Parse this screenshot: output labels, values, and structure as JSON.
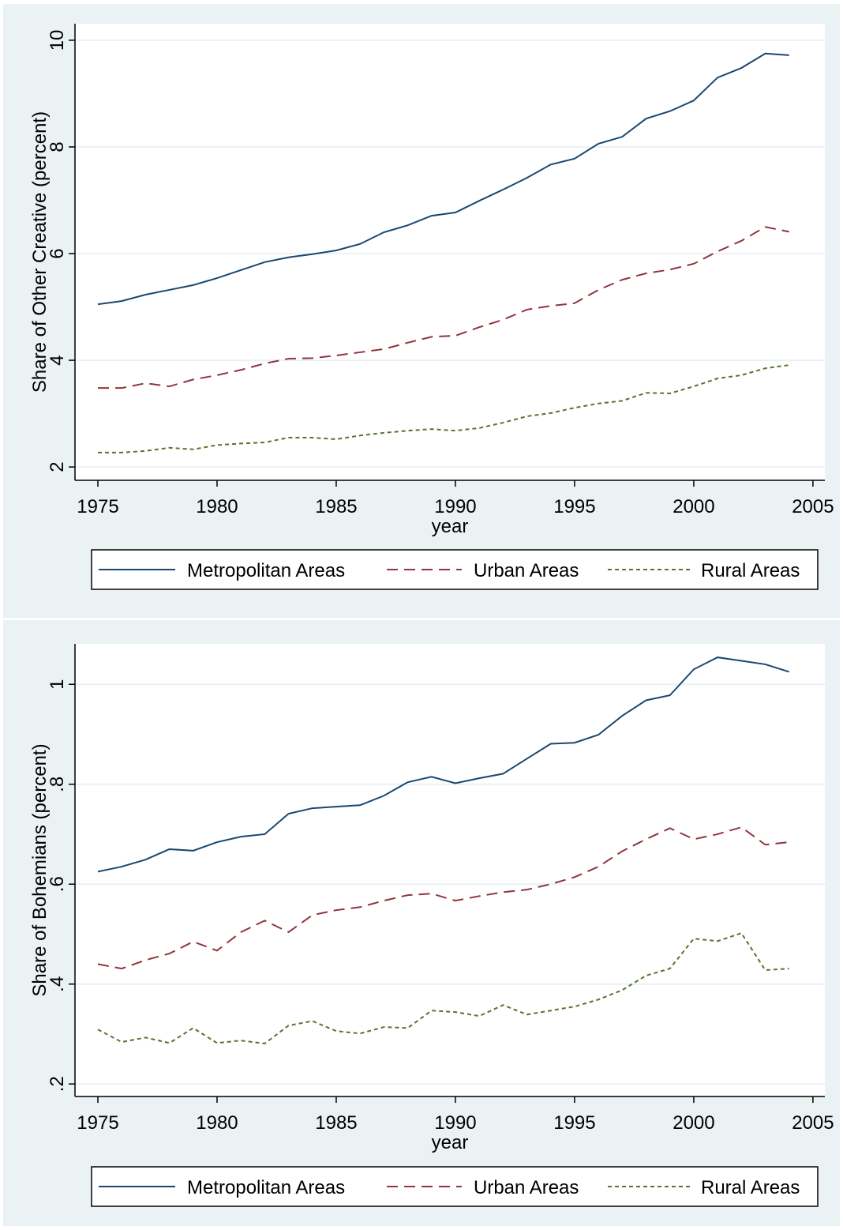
{
  "chart_data": [
    {
      "type": "line",
      "y_label": "Share of Other Creative (percent)",
      "x_label": "year",
      "x": [
        1975,
        1976,
        1977,
        1978,
        1979,
        1980,
        1981,
        1982,
        1983,
        1984,
        1985,
        1986,
        1987,
        1988,
        1989,
        1990,
        1991,
        1992,
        1993,
        1994,
        1995,
        1996,
        1997,
        1998,
        1999,
        2000,
        2001,
        2002,
        2003,
        2004
      ],
      "xlim": [
        1974.04,
        2005.5
      ],
      "xticks": [
        1975,
        1980,
        1985,
        1990,
        1995,
        2000,
        2005
      ],
      "ylim": [
        1.75,
        10.31
      ],
      "yticks": [
        2,
        4,
        6,
        8,
        10
      ],
      "grid": true,
      "series": [
        {
          "name": "Metropolitan Areas",
          "color": "#1a476f",
          "line_style": "solid",
          "values": [
            5.05,
            5.11,
            5.23,
            5.32,
            5.41,
            5.54,
            5.69,
            5.84,
            5.93,
            5.99,
            6.06,
            6.18,
            6.4,
            6.53,
            6.71,
            6.77,
            6.99,
            7.2,
            7.42,
            7.67,
            7.78,
            8.06,
            8.19,
            8.53,
            8.67,
            8.87,
            9.3,
            9.48,
            9.75,
            9.72
          ]
        },
        {
          "name": "Urban Areas",
          "color": "#90353b",
          "line_style": "dash",
          "values": [
            3.48,
            3.48,
            3.57,
            3.51,
            3.64,
            3.72,
            3.82,
            3.94,
            4.03,
            4.04,
            4.09,
            4.15,
            4.21,
            4.33,
            4.44,
            4.46,
            4.62,
            4.76,
            4.95,
            5.02,
            5.07,
            5.32,
            5.51,
            5.63,
            5.7,
            5.81,
            6.04,
            6.24,
            6.5,
            6.41
          ]
        },
        {
          "name": "Rural Areas",
          "color": "#55752f",
          "line_style": "shortdash",
          "values": [
            2.27,
            2.27,
            2.3,
            2.36,
            2.33,
            2.41,
            2.44,
            2.46,
            2.55,
            2.55,
            2.52,
            2.59,
            2.64,
            2.68,
            2.71,
            2.68,
            2.73,
            2.83,
            2.95,
            3.01,
            3.11,
            3.19,
            3.24,
            3.39,
            3.38,
            3.51,
            3.66,
            3.72,
            3.85,
            3.91
          ]
        }
      ]
    },
    {
      "type": "line",
      "y_label": "Share of Bohemians (percent)",
      "x_label": "year",
      "x": [
        1975,
        1976,
        1977,
        1978,
        1979,
        1980,
        1981,
        1982,
        1983,
        1984,
        1985,
        1986,
        1987,
        1988,
        1989,
        1990,
        1991,
        1992,
        1993,
        1994,
        1995,
        1996,
        1997,
        1998,
        1999,
        2000,
        2001,
        2002,
        2003,
        2004
      ],
      "xlim": [
        1974.04,
        2005.5
      ],
      "xticks": [
        1975,
        1980,
        1985,
        1990,
        1995,
        2000,
        2005
      ],
      "ylim": [
        0.175,
        1.081
      ],
      "yticks": [
        {
          "value": 0.2,
          "label": ".2"
        },
        {
          "value": 0.4,
          "label": ".4"
        },
        {
          "value": 0.6,
          "label": ".6"
        },
        {
          "value": 0.8,
          "label": ".8"
        },
        1
      ],
      "grid": true,
      "series": [
        {
          "name": "Metropolitan Areas",
          "color": "#1a476f",
          "line_style": "solid",
          "values": [
            0.625,
            0.635,
            0.649,
            0.67,
            0.667,
            0.684,
            0.695,
            0.7,
            0.741,
            0.752,
            0.755,
            0.758,
            0.777,
            0.804,
            0.815,
            0.802,
            0.812,
            0.821,
            0.851,
            0.881,
            0.883,
            0.899,
            0.937,
            0.968,
            0.978,
            1.03,
            1.054,
            1.047,
            1.04,
            1.025
          ]
        },
        {
          "name": "Urban Areas",
          "color": "#90353b",
          "line_style": "dash",
          "values": [
            0.44,
            0.431,
            0.448,
            0.461,
            0.485,
            0.467,
            0.504,
            0.527,
            0.504,
            0.538,
            0.548,
            0.554,
            0.567,
            0.578,
            0.581,
            0.567,
            0.576,
            0.584,
            0.589,
            0.6,
            0.614,
            0.635,
            0.666,
            0.69,
            0.712,
            0.69,
            0.7,
            0.714,
            0.679,
            0.684
          ]
        },
        {
          "name": "Rural Areas",
          "color": "#55752f",
          "line_style": "shortdash",
          "values": [
            0.309,
            0.284,
            0.293,
            0.282,
            0.312,
            0.282,
            0.287,
            0.281,
            0.317,
            0.326,
            0.306,
            0.301,
            0.314,
            0.312,
            0.347,
            0.344,
            0.336,
            0.358,
            0.339,
            0.347,
            0.355,
            0.369,
            0.388,
            0.417,
            0.431,
            0.491,
            0.486,
            0.502,
            0.428,
            0.431
          ]
        }
      ]
    }
  ]
}
